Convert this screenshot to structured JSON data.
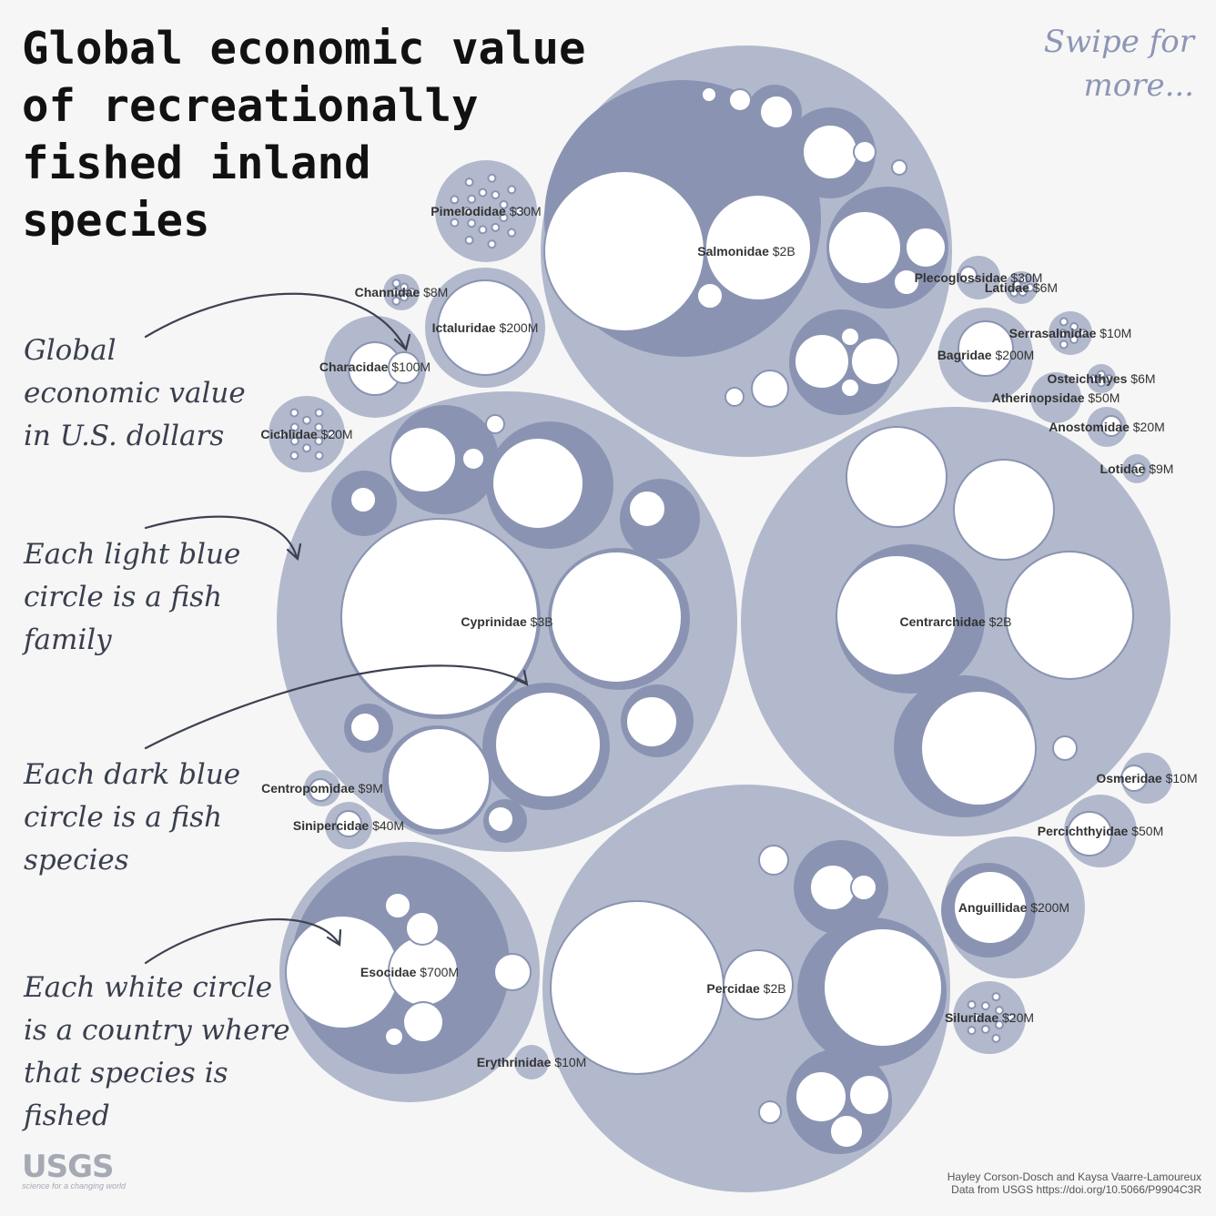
{
  "title": "Global economic value\nof recreationally\nfished inland\nspecies",
  "swipe_text": "Swipe for more...",
  "annotations": {
    "value": "Global economic value in U.S. dollars",
    "light": "Each light blue circle is a fish family",
    "dark": "Each dark blue circle is a fish species",
    "white": "Each white circle is a country where that species is fished"
  },
  "credit": {
    "authors": "Hayley Corson-Dosch and Kaysa Vaarre-Lamoureux",
    "source": "Data from USGS https://doi.org/10.5066/P9904C3R"
  },
  "logo": {
    "text": "USGS",
    "tagline": "science for a changing world"
  },
  "colors": {
    "family": "#b2b9cd",
    "species": "#8a94b2",
    "country": "#ffffff",
    "background": "#f6f6f6"
  },
  "chart_data": {
    "type": "circle-packing",
    "families": [
      {
        "name": "Cyprinidae",
        "value": "$3B",
        "value_usd": 3000000000
      },
      {
        "name": "Salmonidae",
        "value": "$2B",
        "value_usd": 2000000000
      },
      {
        "name": "Centrarchidae",
        "value": "$2B",
        "value_usd": 2000000000
      },
      {
        "name": "Percidae",
        "value": "$2B",
        "value_usd": 2000000000
      },
      {
        "name": "Esocidae",
        "value": "$700M",
        "value_usd": 700000000
      },
      {
        "name": "Ictaluridae",
        "value": "$200M",
        "value_usd": 200000000
      },
      {
        "name": "Bagridae",
        "value": "$200M",
        "value_usd": 200000000
      },
      {
        "name": "Anguillidae",
        "value": "$200M",
        "value_usd": 200000000
      },
      {
        "name": "Characidae",
        "value": "$100M",
        "value_usd": 100000000
      },
      {
        "name": "Atherinopsidae",
        "value": "$50M",
        "value_usd": 50000000
      },
      {
        "name": "Percichthyidae",
        "value": "$50M",
        "value_usd": 50000000
      },
      {
        "name": "Sinipercidae",
        "value": "$40M",
        "value_usd": 40000000
      },
      {
        "name": "Pimelodidae",
        "value": "$30M",
        "value_usd": 30000000
      },
      {
        "name": "Plecoglossidae",
        "value": "$30M",
        "value_usd": 30000000
      },
      {
        "name": "Cichlidae",
        "value": "$20M",
        "value_usd": 20000000
      },
      {
        "name": "Anostomidae",
        "value": "$20M",
        "value_usd": 20000000
      },
      {
        "name": "Siluridae",
        "value": "$20M",
        "value_usd": 20000000
      },
      {
        "name": "Serrasalmidae",
        "value": "$10M",
        "value_usd": 10000000
      },
      {
        "name": "Osmeridae",
        "value": "$10M",
        "value_usd": 10000000
      },
      {
        "name": "Erythrinidae",
        "value": "$10M",
        "value_usd": 10000000
      },
      {
        "name": "Lotidae",
        "value": "$9M",
        "value_usd": 9000000
      },
      {
        "name": "Centropomidae",
        "value": "$9M",
        "value_usd": 9000000
      },
      {
        "name": "Channidae",
        "value": "$8M",
        "value_usd": 8000000
      },
      {
        "name": "Latidae",
        "value": "$6M",
        "value_usd": 6000000
      },
      {
        "name": "Osteichthyes",
        "value": "$6M",
        "value_usd": 6000000
      }
    ]
  }
}
